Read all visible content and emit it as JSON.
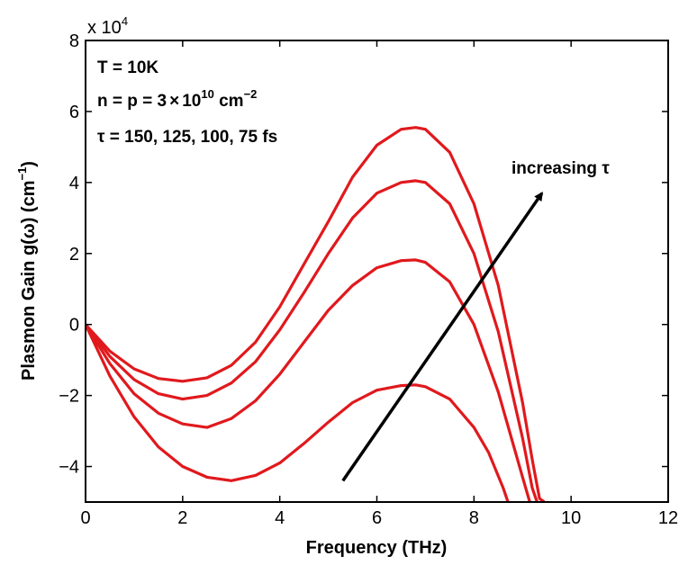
{
  "chart_data": {
    "type": "line",
    "xlabel": "Frequency (THz)",
    "ylabel": "Plasmon Gain g(ω) (cm",
    "ylabel_sup": "−1",
    "ylabel_close": ")",
    "y_exponent_base": "x 10",
    "y_exponent_power": "4",
    "xlim": [
      0,
      12
    ],
    "ylim": [
      -5,
      8
    ],
    "y_scale_factor": 10000,
    "x_ticks": [
      0,
      2,
      4,
      6,
      8,
      10,
      12
    ],
    "x_tick_labels": [
      "0",
      "2",
      "4",
      "6",
      "8",
      "10",
      "12"
    ],
    "y_ticks": [
      -4,
      -2,
      0,
      2,
      4,
      6,
      8
    ],
    "y_tick_labels": [
      "−4",
      "−2",
      "0",
      "2",
      "4",
      "6",
      "8"
    ],
    "grid": false,
    "series_color": "#e0191d",
    "series": [
      {
        "label_tau": "150 fs",
        "x": [
          0,
          0.5,
          1,
          1.5,
          2,
          2.5,
          3,
          3.5,
          4,
          4.5,
          5,
          5.5,
          6,
          6.5,
          6.8,
          7,
          7.5,
          8,
          8.5,
          9,
          9.2,
          9.35,
          9.45
        ],
        "y": [
          0,
          -0.75,
          -1.25,
          -1.52,
          -1.6,
          -1.5,
          -1.15,
          -0.5,
          0.5,
          1.7,
          2.9,
          4.15,
          5.05,
          5.5,
          5.55,
          5.5,
          4.85,
          3.4,
          1.1,
          -2.2,
          -3.8,
          -4.9,
          -5
        ]
      },
      {
        "label_tau": "125 fs",
        "x": [
          0,
          0.5,
          1,
          1.5,
          2,
          2.5,
          3,
          3.5,
          4,
          4.5,
          5,
          5.5,
          6,
          6.5,
          6.8,
          7,
          7.5,
          8,
          8.5,
          9,
          9.2,
          9.3
        ],
        "y": [
          0,
          -0.9,
          -1.55,
          -1.95,
          -2.1,
          -2.0,
          -1.65,
          -1.05,
          -0.15,
          0.9,
          2.0,
          3.0,
          3.7,
          4.0,
          4.05,
          4.0,
          3.4,
          2.0,
          -0.2,
          -3.2,
          -4.6,
          -5
        ]
      },
      {
        "label_tau": "100 fs",
        "x": [
          0,
          0.5,
          1,
          1.5,
          2,
          2.5,
          3,
          3.5,
          4,
          4.5,
          5,
          5.5,
          6,
          6.5,
          6.8,
          7,
          7.5,
          8,
          8.5,
          9,
          9.15
        ],
        "y": [
          0,
          -1.1,
          -1.95,
          -2.5,
          -2.8,
          -2.9,
          -2.65,
          -2.15,
          -1.4,
          -0.5,
          0.4,
          1.1,
          1.6,
          1.8,
          1.82,
          1.75,
          1.2,
          0,
          -1.9,
          -4.3,
          -5
        ]
      },
      {
        "label_tau": "75 fs",
        "x": [
          0,
          0.5,
          1,
          1.5,
          2,
          2.5,
          3,
          3.5,
          4,
          4.5,
          5,
          5.5,
          6,
          6.5,
          6.8,
          7,
          7.5,
          8,
          8.3,
          8.6,
          8.7
        ],
        "y": [
          0,
          -1.45,
          -2.6,
          -3.45,
          -4.0,
          -4.3,
          -4.4,
          -4.25,
          -3.9,
          -3.35,
          -2.75,
          -2.2,
          -1.85,
          -1.72,
          -1.7,
          -1.75,
          -2.1,
          -2.9,
          -3.6,
          -4.6,
          -5
        ]
      }
    ],
    "annotations": {
      "line1": "T = 10K",
      "line2_prefix": "n = p = 3",
      "line2_times": "×",
      "line2_base": "10",
      "line2_power": "10",
      "line2_unit": " cm",
      "line2_unit_power": "−2",
      "line3": "τ = 150, 125, 100, 75 fs",
      "arrow_label": "increasing τ"
    },
    "arrow": {
      "from": [
        5.3,
        -4.4
      ],
      "to": [
        9.4,
        3.7
      ]
    }
  }
}
